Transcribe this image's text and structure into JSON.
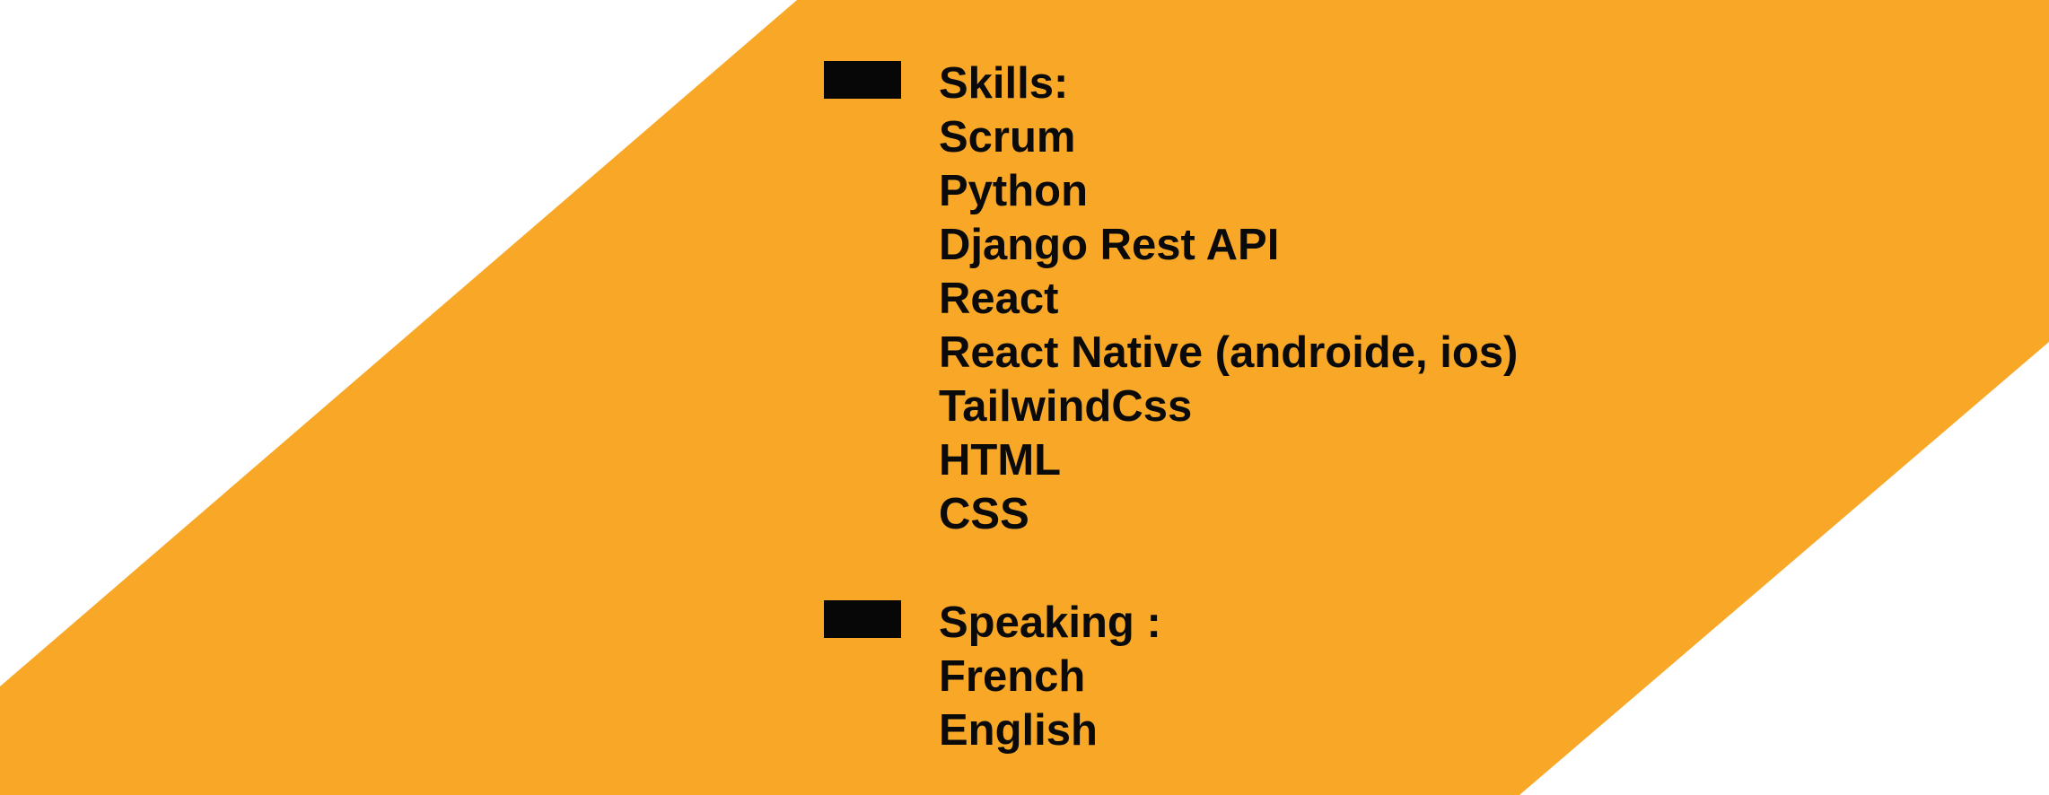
{
  "colors": {
    "band": "#F8A826",
    "background": "#FFFFFF",
    "text": "#0A0A0A",
    "bullet": "#070707"
  },
  "skills": {
    "heading": "Skills:",
    "items": [
      "Scrum",
      "Python",
      "Django Rest API",
      "React",
      "React Native (androide, ios)",
      "TailwindCss",
      "HTML",
      "CSS"
    ]
  },
  "speaking": {
    "heading": "Speaking :",
    "items": [
      "French",
      "English"
    ]
  }
}
